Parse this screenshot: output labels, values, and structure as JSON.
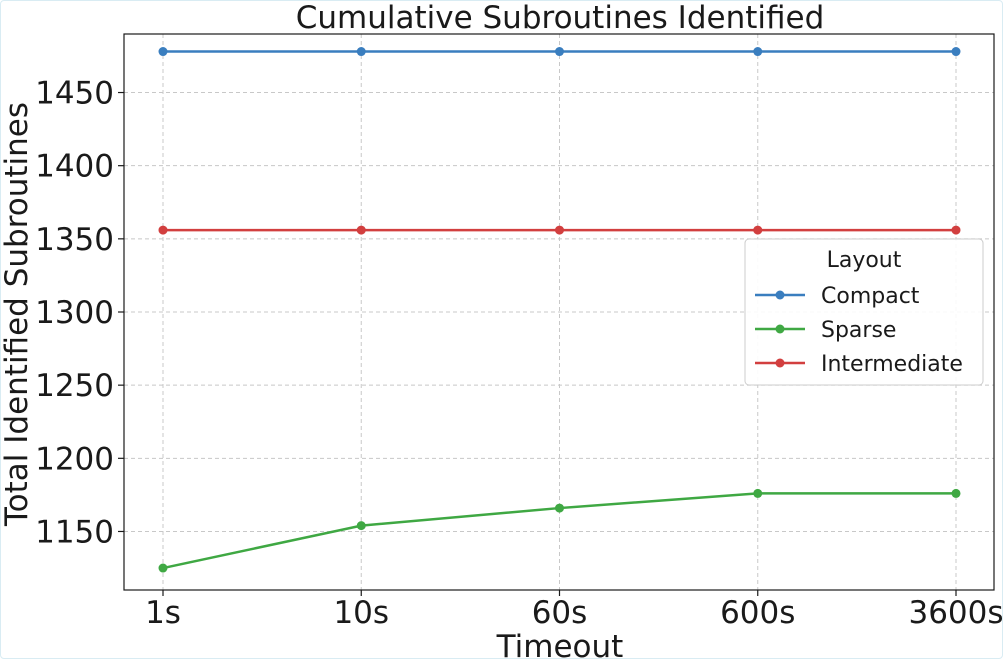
{
  "chart_data": {
    "type": "line",
    "title": "Cumulative Subroutines Identified",
    "xlabel": "Timeout",
    "ylabel": "Total Identified Subroutines",
    "categories": [
      "1s",
      "10s",
      "60s",
      "600s",
      "3600s"
    ],
    "ylim": [
      1110,
      1490
    ],
    "yticks": [
      1150,
      1200,
      1250,
      1300,
      1350,
      1400,
      1450
    ],
    "grid": true,
    "legend": {
      "title": "Layout",
      "placement": "center-right"
    },
    "series": [
      {
        "name": "Compact",
        "color": "#3a7ebf",
        "values": [
          1478,
          1478,
          1478,
          1478,
          1478
        ]
      },
      {
        "name": "Sparse",
        "color": "#3fa843",
        "values": [
          1125,
          1154,
          1166,
          1176,
          1176
        ]
      },
      {
        "name": "Intermediate",
        "color": "#d23f3f",
        "values": [
          1356,
          1356,
          1356,
          1356,
          1356
        ]
      }
    ]
  }
}
